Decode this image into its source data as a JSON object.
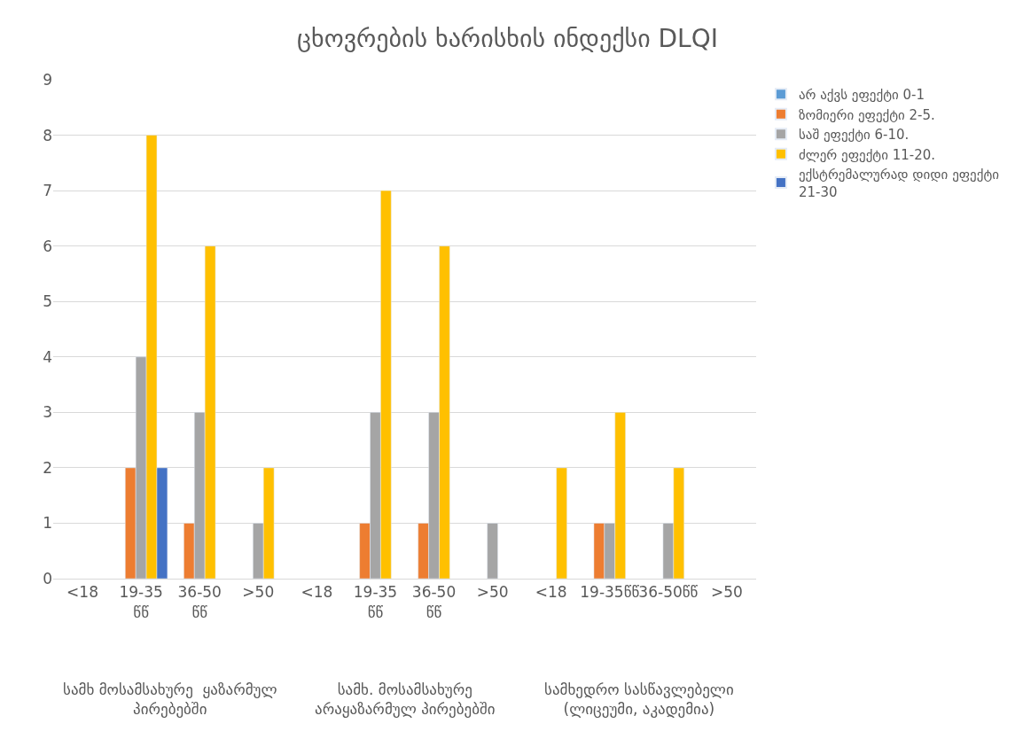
{
  "chart_data": {
    "type": "bar",
    "title": "ცხოვრების ხარისხის ინდექსი DLQI",
    "categories": [
      "<18",
      "19-35 წწ",
      "36-50 წწ",
      ">50",
      "<18",
      "19-35 წწ",
      "36-50 წწ",
      ">50",
      "<18",
      "19-35წწ",
      "36-50წწ",
      ">50"
    ],
    "series": [
      {
        "name": "არ აქვს ეფექტი 0-1",
        "color": "#5b9bd5",
        "values": [
          null,
          null,
          null,
          null,
          null,
          null,
          null,
          null,
          null,
          null,
          null,
          null
        ]
      },
      {
        "name": "ზომიერი ეფექტი 2-5.",
        "color": "#ed7d31",
        "values": [
          null,
          2,
          1,
          null,
          null,
          1,
          1,
          null,
          null,
          1,
          null,
          null
        ]
      },
      {
        "name": "საშ ეფექტი 6-10.",
        "color": "#a5a5a5",
        "values": [
          null,
          4,
          3,
          1,
          null,
          3,
          3,
          1,
          null,
          1,
          1,
          null
        ]
      },
      {
        "name": "ძლერ ეფექტი 11-20.",
        "color": "#ffc000",
        "values": [
          null,
          8,
          6,
          2,
          null,
          7,
          6,
          null,
          2,
          3,
          2,
          null
        ]
      },
      {
        "name": "ექსტრემალურად დიდი ეფექტი 21-30",
        "color": "#4472c4",
        "values": [
          null,
          2,
          null,
          null,
          null,
          null,
          null,
          null,
          null,
          null,
          null,
          null
        ]
      }
    ],
    "annotations": [
      "სამხ მოსამსახურე  ყაზარმულ პირებებში",
      "სამხ. მოსამსახურე არაყაზარმულ პირებებში",
      "სამხედრო სასწავლებელი (ლიცეუმი, აკადემია)"
    ],
    "ylim": [
      0,
      9
    ],
    "yticks": [
      0,
      1,
      2,
      3,
      4,
      5,
      6,
      7,
      8,
      9
    ],
    "grid": "y",
    "legend": "right"
  }
}
